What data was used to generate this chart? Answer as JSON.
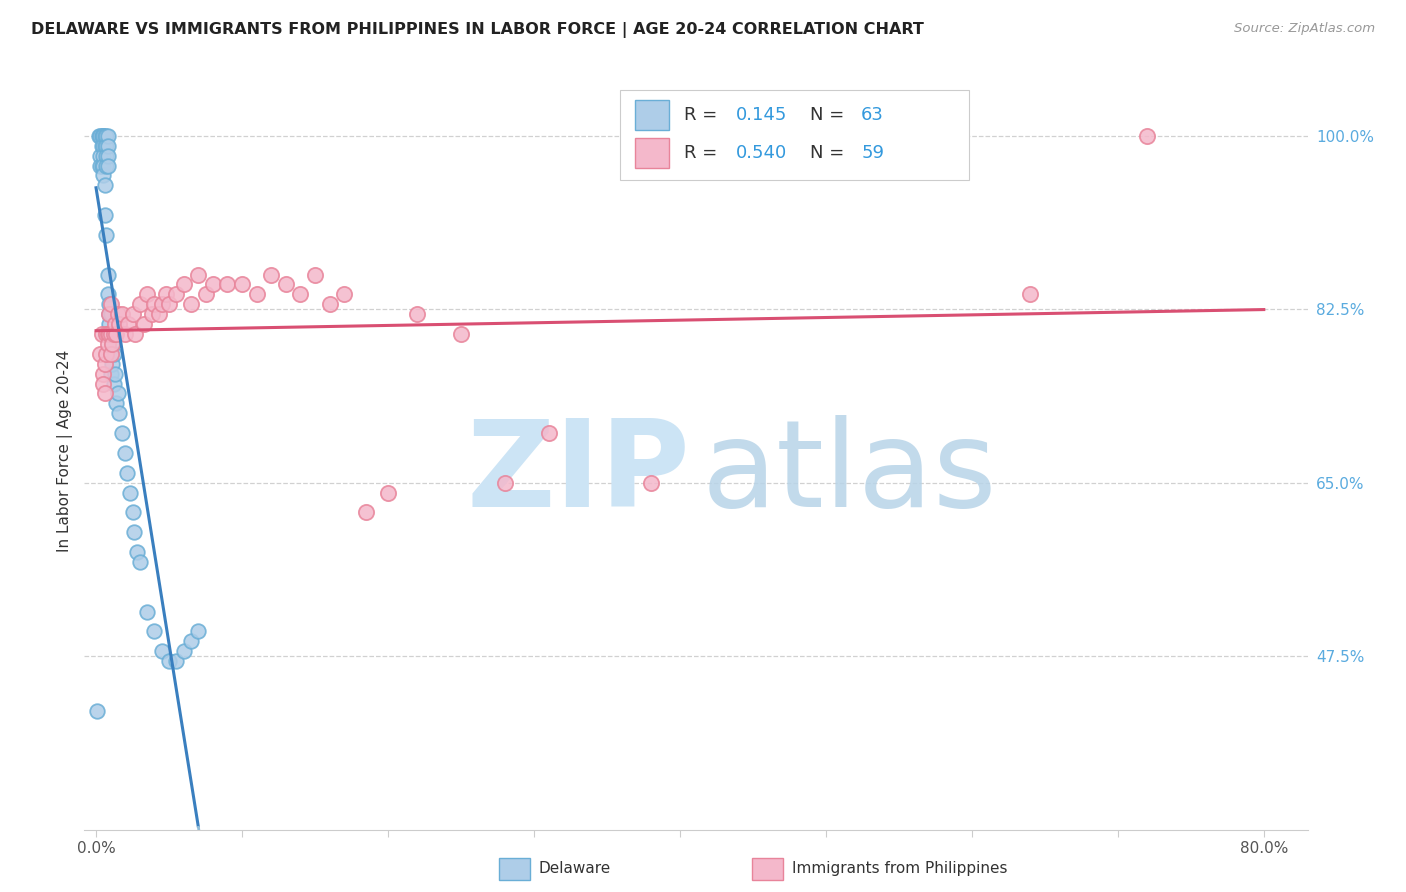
{
  "title": "DELAWARE VS IMMIGRANTS FROM PHILIPPINES IN LABOR FORCE | AGE 20-24 CORRELATION CHART",
  "source": "Source: ZipAtlas.com",
  "ylabel": "In Labor Force | Age 20-24",
  "xlim_min": -0.008,
  "xlim_max": 0.83,
  "ylim_min": 0.3,
  "ylim_max": 1.065,
  "xtick_positions": [
    0.0,
    0.1,
    0.2,
    0.3,
    0.4,
    0.5,
    0.6,
    0.7,
    0.8
  ],
  "xticklabels": [
    "0.0%",
    "",
    "",
    "",
    "",
    "",
    "",
    "",
    "80.0%"
  ],
  "ytick_positions": [
    0.475,
    0.65,
    0.825,
    1.0
  ],
  "ytick_labels": [
    "47.5%",
    "65.0%",
    "82.5%",
    "100.0%"
  ],
  "r1": "0.145",
  "n1": "63",
  "r2": "0.540",
  "n2": "59",
  "blue_face": "#aecde8",
  "blue_edge": "#6aaed6",
  "pink_face": "#f4b8cb",
  "pink_edge": "#e8849a",
  "trendline_blue": "#3a7fbf",
  "trendline_pink": "#d94f72",
  "trendline_blue_dashed": "#90bcd8",
  "grid_color": "#cccccc",
  "right_tick_color": "#5aabdf",
  "watermark_zip_color": "#cce4f5",
  "watermark_atlas_color": "#b8d4e8",
  "delaware_x": [
    0.001,
    0.002,
    0.003,
    0.003,
    0.003,
    0.004,
    0.004,
    0.004,
    0.005,
    0.005,
    0.005,
    0.005,
    0.005,
    0.005,
    0.005,
    0.006,
    0.006,
    0.006,
    0.006,
    0.007,
    0.007,
    0.007,
    0.007,
    0.007,
    0.008,
    0.008,
    0.008,
    0.008,
    0.008,
    0.008,
    0.009,
    0.009,
    0.009,
    0.009,
    0.01,
    0.01,
    0.01,
    0.01,
    0.011,
    0.011,
    0.011,
    0.012,
    0.012,
    0.013,
    0.014,
    0.015,
    0.016,
    0.018,
    0.02,
    0.021,
    0.023,
    0.025,
    0.026,
    0.028,
    0.03,
    0.035,
    0.04,
    0.045,
    0.05,
    0.055,
    0.06,
    0.065,
    0.07
  ],
  "delaware_y": [
    0.42,
    1.0,
    1.0,
    0.98,
    0.97,
    1.0,
    0.99,
    0.97,
    1.0,
    1.0,
    1.0,
    0.99,
    0.98,
    0.97,
    0.96,
    1.0,
    0.99,
    0.95,
    0.92,
    1.0,
    0.99,
    0.98,
    0.97,
    0.9,
    1.0,
    0.99,
    0.98,
    0.97,
    0.86,
    0.84,
    0.83,
    0.82,
    0.81,
    0.8,
    0.82,
    0.8,
    0.78,
    0.76,
    0.8,
    0.79,
    0.77,
    0.78,
    0.75,
    0.76,
    0.73,
    0.74,
    0.72,
    0.7,
    0.68,
    0.66,
    0.64,
    0.62,
    0.6,
    0.58,
    0.57,
    0.52,
    0.5,
    0.48,
    0.47,
    0.47,
    0.48,
    0.49,
    0.5
  ],
  "philippines_x": [
    0.003,
    0.004,
    0.005,
    0.005,
    0.006,
    0.006,
    0.007,
    0.007,
    0.008,
    0.008,
    0.009,
    0.009,
    0.01,
    0.01,
    0.01,
    0.011,
    0.012,
    0.013,
    0.014,
    0.015,
    0.016,
    0.018,
    0.02,
    0.022,
    0.025,
    0.027,
    0.03,
    0.033,
    0.035,
    0.038,
    0.04,
    0.043,
    0.045,
    0.048,
    0.05,
    0.055,
    0.06,
    0.065,
    0.07,
    0.075,
    0.08,
    0.09,
    0.1,
    0.11,
    0.12,
    0.13,
    0.14,
    0.15,
    0.16,
    0.17,
    0.185,
    0.2,
    0.22,
    0.25,
    0.28,
    0.31,
    0.38,
    0.64,
    0.72
  ],
  "philippines_y": [
    0.78,
    0.8,
    0.76,
    0.75,
    0.77,
    0.74,
    0.8,
    0.78,
    0.8,
    0.79,
    0.82,
    0.8,
    0.83,
    0.8,
    0.78,
    0.79,
    0.8,
    0.81,
    0.8,
    0.82,
    0.81,
    0.82,
    0.8,
    0.81,
    0.82,
    0.8,
    0.83,
    0.81,
    0.84,
    0.82,
    0.83,
    0.82,
    0.83,
    0.84,
    0.83,
    0.84,
    0.85,
    0.83,
    0.86,
    0.84,
    0.85,
    0.85,
    0.85,
    0.84,
    0.86,
    0.85,
    0.84,
    0.86,
    0.83,
    0.84,
    0.62,
    0.64,
    0.82,
    0.8,
    0.65,
    0.7,
    0.65,
    0.84,
    1.0
  ]
}
